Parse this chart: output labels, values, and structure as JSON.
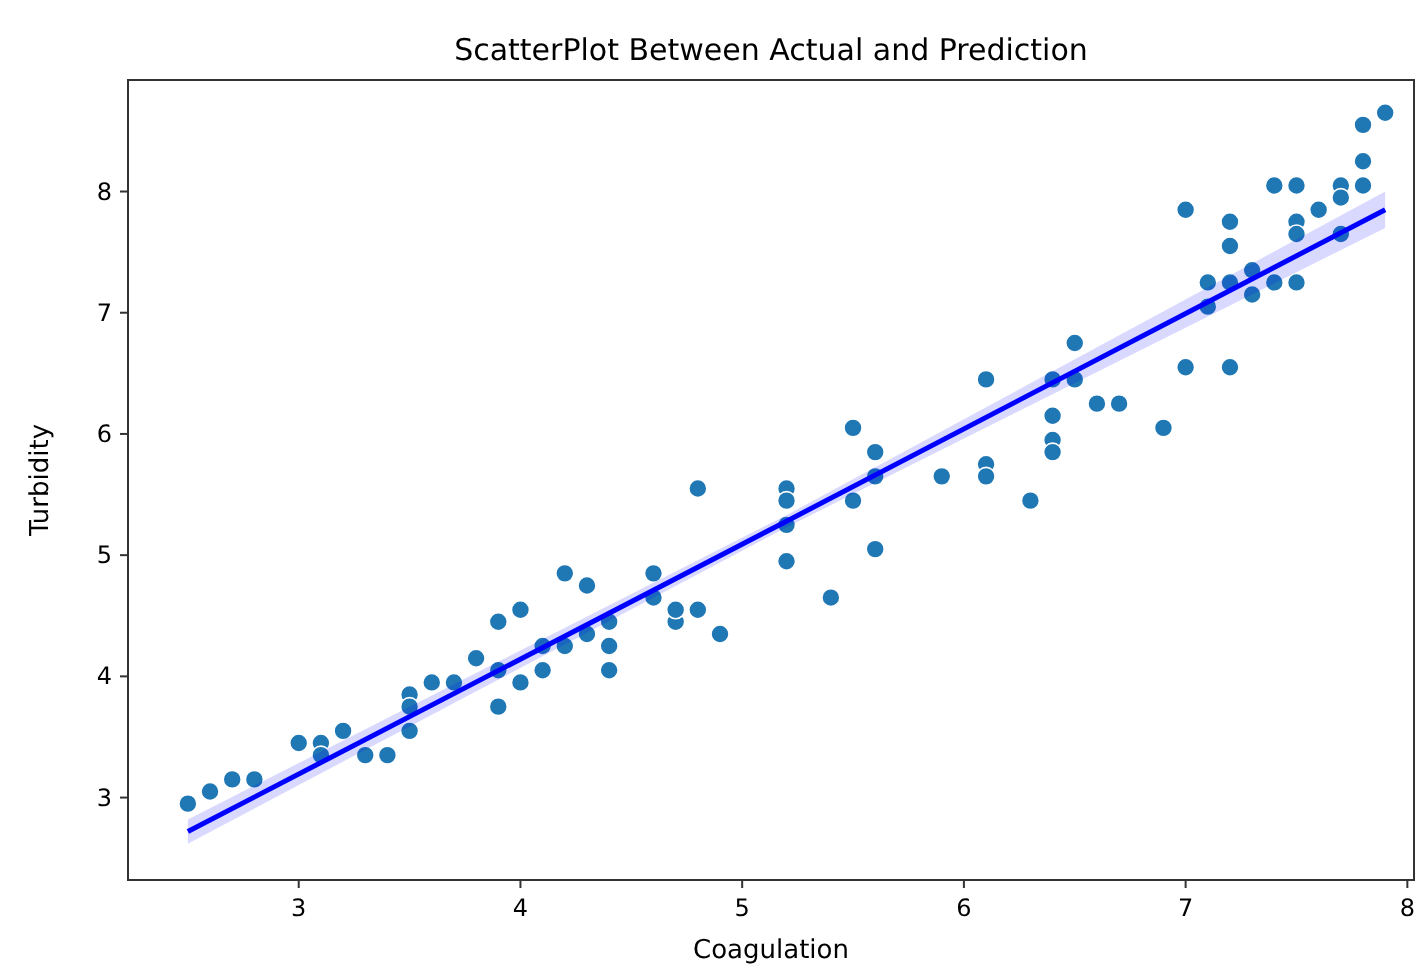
{
  "chart_data": {
    "type": "scatter",
    "title": "ScatterPlot Between Actual and Prediction",
    "xlabel": "Coagulation",
    "ylabel": "Turbidity",
    "xlim": [
      2.23,
      8.03
    ],
    "ylim": [
      2.32,
      8.92
    ],
    "xticks": [
      3,
      4,
      5,
      6,
      7,
      8
    ],
    "yticks": [
      3,
      4,
      5,
      6,
      7,
      8
    ],
    "grid": false,
    "marker": "circle",
    "series": [
      {
        "color": "#1f77b4",
        "x": [
          2.5,
          2.6,
          2.7,
          2.8,
          3.0,
          3.1,
          3.1,
          3.2,
          3.3,
          3.4,
          3.5,
          3.5,
          3.5,
          3.6,
          3.7,
          3.8,
          3.9,
          3.9,
          3.9,
          4.0,
          4.0,
          4.1,
          4.1,
          4.2,
          4.2,
          4.3,
          4.3,
          4.4,
          4.4,
          4.4,
          4.6,
          4.6,
          4.7,
          4.7,
          4.8,
          4.8,
          4.9,
          5.2,
          5.2,
          5.2,
          5.2,
          5.4,
          5.5,
          5.5,
          5.6,
          5.6,
          5.6,
          5.9,
          6.1,
          6.1,
          6.1,
          6.3,
          6.4,
          6.4,
          6.4,
          6.4,
          6.5,
          6.5,
          6.6,
          6.7,
          6.9,
          7.0,
          7.0,
          7.1,
          7.1,
          7.2,
          7.2,
          7.2,
          7.2,
          7.3,
          7.3,
          7.4,
          7.4,
          7.5,
          7.5,
          7.5,
          7.5,
          7.6,
          7.7,
          7.7,
          7.7,
          7.8,
          7.8,
          7.8,
          7.9
        ],
        "values": [
          2.95,
          3.05,
          3.15,
          3.15,
          3.45,
          3.45,
          3.35,
          3.55,
          3.35,
          3.35,
          3.85,
          3.75,
          3.55,
          3.95,
          3.95,
          4.15,
          4.45,
          4.05,
          3.75,
          4.55,
          3.95,
          4.25,
          4.05,
          4.85,
          4.25,
          4.75,
          4.35,
          4.45,
          4.25,
          4.05,
          4.85,
          4.65,
          4.45,
          4.55,
          4.55,
          5.55,
          4.35,
          5.55,
          5.45,
          5.25,
          4.95,
          4.65,
          6.05,
          5.45,
          5.85,
          5.65,
          5.05,
          5.65,
          6.45,
          5.75,
          5.65,
          5.45,
          6.45,
          6.15,
          5.95,
          5.85,
          6.75,
          6.45,
          6.25,
          6.25,
          6.05,
          7.85,
          6.55,
          7.25,
          7.05,
          7.75,
          7.55,
          7.25,
          6.55,
          7.35,
          7.15,
          8.05,
          7.25,
          8.05,
          7.75,
          7.65,
          7.25,
          7.85,
          8.05,
          7.95,
          7.65,
          8.55,
          8.25,
          8.05,
          8.65
        ]
      },
      {
        "type": "line",
        "marker": "none",
        "color": "#0000ff",
        "x": [
          2.5,
          5.2,
          7.9
        ],
        "values": [
          2.72,
          5.28,
          7.85
        ],
        "lower": [
          2.62,
          5.23,
          7.7
        ],
        "upper": [
          2.82,
          5.33,
          8.0
        ]
      }
    ]
  }
}
